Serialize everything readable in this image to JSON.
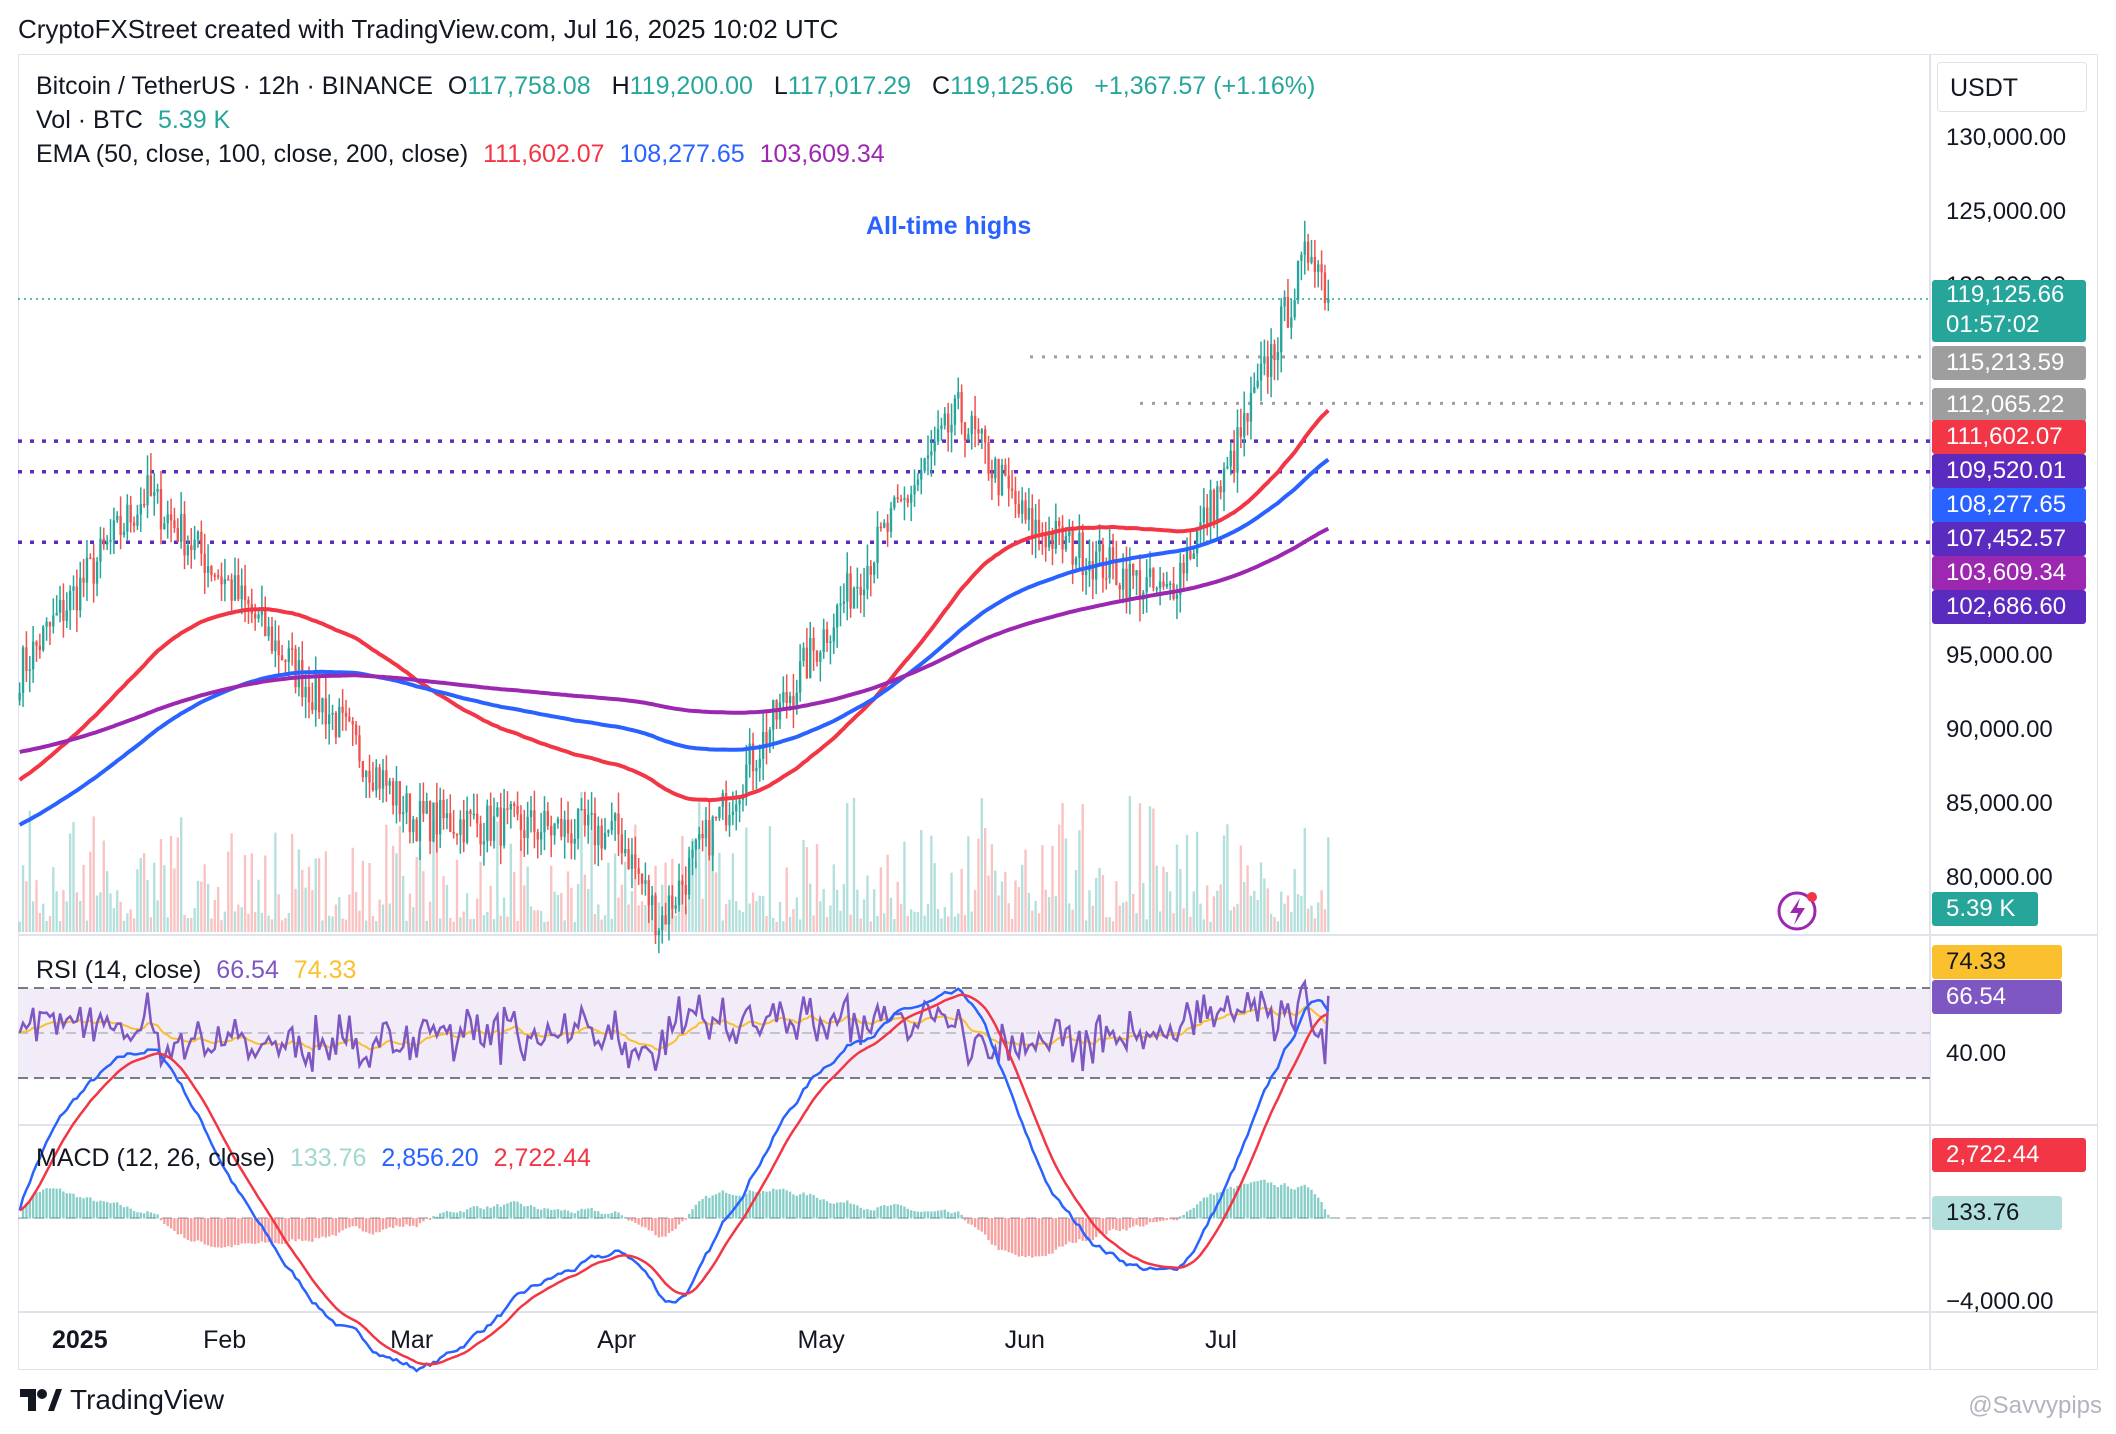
{
  "header": {
    "text": "CryptoFXStreet created with TradingView.com, Jul 16, 2025 10:02 UTC"
  },
  "legend": {
    "symbol": "Bitcoin / TetherUS · 12h · BINANCE",
    "open_label": "O",
    "open": "117,758.08",
    "high_label": "H",
    "high": "119,200.00",
    "low_label": "L",
    "low": "117,017.29",
    "close_label": "C",
    "close": "119,125.66",
    "change": "+1,367.57 (+1.16%)",
    "vol_label": "Vol · BTC",
    "vol": "5.39 K",
    "ema_label": "EMA (50, close, 100, close, 200, close)",
    "ema50": "111,602.07",
    "ema100": "108,277.65",
    "ema200": "103,609.34"
  },
  "annotation": "All-time highs",
  "price_axis": {
    "currency": "USDT",
    "ticks": [
      "130,000.00",
      "125,000.00",
      "120,000.00",
      "95,000.00",
      "90,000.00",
      "85,000.00",
      "80,000.00"
    ],
    "tags": [
      {
        "value": "119,125.66",
        "sub": "01:57:02",
        "color": "#26a69a"
      },
      {
        "value": "115,213.59",
        "color": "#9e9e9e"
      },
      {
        "value": "112,065.22",
        "color": "#9e9e9e"
      },
      {
        "value": "111,602.07",
        "color": "#f23645"
      },
      {
        "value": "109,520.01",
        "color": "#5b2bbf"
      },
      {
        "value": "108,277.65",
        "color": "#2962ff"
      },
      {
        "value": "107,452.57",
        "color": "#5b2bbf"
      },
      {
        "value": "103,609.34",
        "color": "#9c27b0"
      },
      {
        "value": "102,686.60",
        "color": "#5b2bbf"
      },
      {
        "value": "5.39 K",
        "color": "#26a69a"
      }
    ]
  },
  "rsi": {
    "label": "RSI (14, close)",
    "value": "66.54",
    "ma": "74.33",
    "tick": "40.00",
    "tag_rsi": "66.54",
    "tag_ma": "74.33"
  },
  "macd": {
    "label": "MACD (12, 26, close)",
    "hist": "133.76",
    "macd": "2,856.20",
    "signal": "2,722.44",
    "tick": "−4,000.00",
    "tag_signal": "2,722.44",
    "tag_hist": "133.76"
  },
  "time_axis": [
    "2025",
    "Feb",
    "Mar",
    "Apr",
    "May",
    "Jun",
    "Jul"
  ],
  "footer": {
    "brand": "TradingView",
    "watermark": "@Savvypips"
  },
  "colors": {
    "up": "#26a69a",
    "down": "#ef5350",
    "ema50": "#f23645",
    "ema100": "#2962ff",
    "ema200": "#9c27b0",
    "rsi": "#7e57c2",
    "rsi_ma": "#fbc02d",
    "macd": "#2962ff",
    "signal": "#f23645"
  },
  "chart_data": {
    "type": "candlestick",
    "title": "Bitcoin / TetherUS · 12h · BINANCE",
    "ylim": [
      77000,
      132000
    ],
    "support_levels": [
      115213.59,
      112065.22,
      109520.01,
      107452.57,
      102686.6
    ],
    "last_price": 119125.66,
    "ema": {
      "ema50": 111602.07,
      "ema100": 108277.65,
      "ema200": 103609.34
    },
    "key_points": [
      {
        "date": "2025-01-01",
        "price": 94000
      },
      {
        "date": "2025-01-20",
        "price": 106000
      },
      {
        "date": "2025-02-01",
        "price": 100000
      },
      {
        "date": "2025-03-01",
        "price": 84000
      },
      {
        "date": "2025-04-01",
        "price": 83000
      },
      {
        "date": "2025-04-07",
        "price": 77000
      },
      {
        "date": "2025-05-01",
        "price": 96000
      },
      {
        "date": "2025-05-22",
        "price": 111500
      },
      {
        "date": "2025-06-01",
        "price": 104000
      },
      {
        "date": "2025-06-22",
        "price": 99000
      },
      {
        "date": "2025-07-01",
        "price": 107000
      },
      {
        "date": "2025-07-14",
        "price": 123000
      },
      {
        "date": "2025-07-16",
        "price": 119125.66
      }
    ]
  }
}
